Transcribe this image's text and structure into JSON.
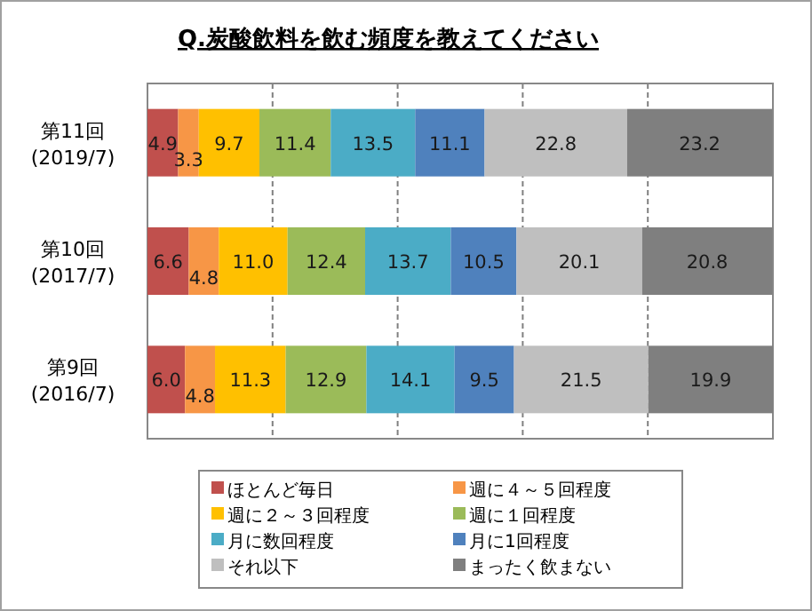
{
  "chart_data": {
    "type": "bar",
    "orientation": "horizontal",
    "stacked": true,
    "title": "Q.炭酸飲料を飲む頻度を教えてください",
    "categories": [
      "第11回\n(2019/7)",
      "第10回\n(2017/7)",
      "第9回\n(2016/7)"
    ],
    "series": [
      {
        "name": "ほとんど毎日",
        "color": "#c0504d",
        "values": [
          4.9,
          6.6,
          6.0
        ],
        "value_labels": [
          "4.9",
          "6.6",
          "6.0"
        ]
      },
      {
        "name": "週に４～５回程度",
        "color": "#f79646",
        "values": [
          3.3,
          4.8,
          4.8
        ],
        "value_labels": [
          "3.3",
          "4.8",
          "4.8"
        ]
      },
      {
        "name": "週に２～３回程度",
        "color": "#ffc000",
        "values": [
          9.7,
          11.0,
          11.3
        ],
        "value_labels": [
          "9.7",
          "11.0",
          "11.3"
        ]
      },
      {
        "name": "週に１回程度",
        "color": "#9bbb59",
        "values": [
          11.4,
          12.4,
          12.9
        ],
        "value_labels": [
          "11.4",
          "12.4",
          "12.9"
        ]
      },
      {
        "name": "月に数回程度",
        "color": "#4bacc6",
        "values": [
          13.5,
          13.7,
          14.1
        ],
        "value_labels": [
          "13.5",
          "13.7",
          "14.1"
        ]
      },
      {
        "name": "月に1回程度",
        "color": "#4f81bd",
        "values": [
          11.1,
          10.5,
          9.5
        ],
        "value_labels": [
          "11.1",
          "10.5",
          "9.5"
        ]
      },
      {
        "name": "それ以下",
        "color": "#bfbfbf",
        "values": [
          22.8,
          20.1,
          21.5
        ],
        "value_labels": [
          "22.8",
          "20.1",
          "21.5"
        ]
      },
      {
        "name": "まったく飲まない",
        "color": "#7f7f7f",
        "values": [
          23.2,
          20.8,
          19.9
        ],
        "value_labels": [
          "23.2",
          "20.8",
          "19.9"
        ]
      }
    ],
    "xlim": [
      0,
      100
    ],
    "xticks": [
      {
        "value": 0,
        "label": null
      },
      {
        "value": 20,
        "label": null
      },
      {
        "value": 40,
        "label": null
      },
      {
        "value": 60,
        "label": null
      },
      {
        "value": 80,
        "label": null
      },
      {
        "value": 100,
        "label": null
      }
    ],
    "tick_labels": "y",
    "grid": "x",
    "legend": "bottom"
  }
}
